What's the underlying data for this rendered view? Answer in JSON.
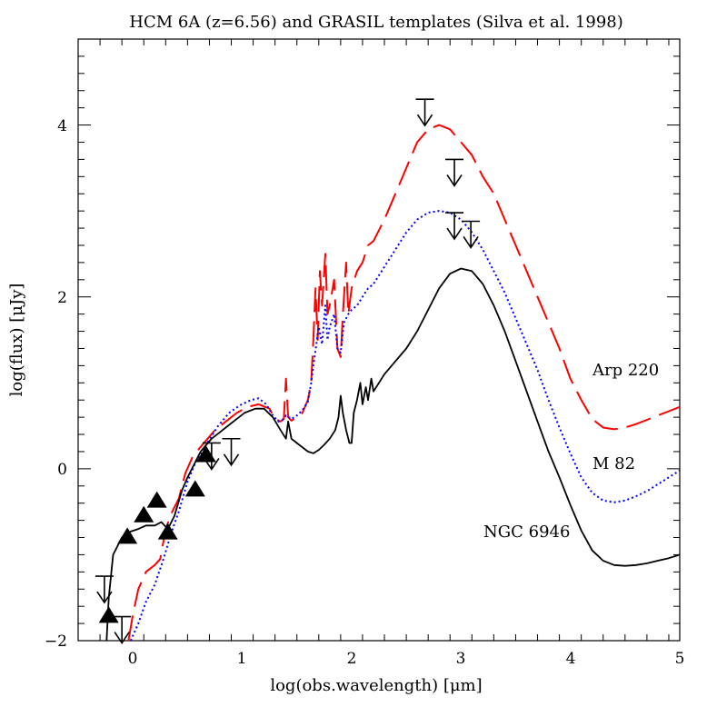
{
  "chart_data": {
    "type": "line",
    "title": "HCM 6A (z=6.56) and GRASIL templates (Silva et al. 1998)",
    "xlabel": "log(obs.wavelength) [μm]",
    "ylabel": "log(flux) [μJy]",
    "xlim": [
      -0.5,
      5
    ],
    "ylim": [
      -2,
      5
    ],
    "x_major_ticks": [
      0,
      1,
      2,
      3,
      4,
      5
    ],
    "x_tick_labels": [
      "0",
      "1",
      "2",
      "3",
      "4",
      "5"
    ],
    "y_major_ticks": [
      -2,
      0,
      2,
      4
    ],
    "y_tick_labels": [
      "−2",
      "0",
      "2",
      "4"
    ],
    "grid": false,
    "series": [
      {
        "name": "Arp 220",
        "color": "#ff0000",
        "dash": "long-dash",
        "points": [
          [
            -0.04,
            -2.0
          ],
          [
            0.0,
            -1.7
          ],
          [
            0.05,
            -1.4
          ],
          [
            0.12,
            -1.2
          ],
          [
            0.2,
            -1.12
          ],
          [
            0.25,
            -1.05
          ],
          [
            0.3,
            -0.7
          ],
          [
            0.36,
            -0.5
          ],
          [
            0.42,
            -0.35
          ],
          [
            0.48,
            -0.05
          ],
          [
            0.55,
            0.15
          ],
          [
            0.65,
            0.3
          ],
          [
            0.75,
            0.45
          ],
          [
            0.85,
            0.55
          ],
          [
            0.95,
            0.65
          ],
          [
            1.05,
            0.72
          ],
          [
            1.15,
            0.75
          ],
          [
            1.25,
            0.7
          ],
          [
            1.3,
            0.58
          ],
          [
            1.35,
            0.55
          ],
          [
            1.38,
            0.58
          ],
          [
            1.4,
            1.05
          ],
          [
            1.42,
            0.6
          ],
          [
            1.45,
            0.56
          ],
          [
            1.5,
            0.6
          ],
          [
            1.55,
            0.65
          ],
          [
            1.6,
            0.8
          ],
          [
            1.63,
            1.0
          ],
          [
            1.65,
            1.5
          ],
          [
            1.67,
            2.1
          ],
          [
            1.69,
            1.5
          ],
          [
            1.71,
            2.3
          ],
          [
            1.73,
            1.9
          ],
          [
            1.76,
            2.5
          ],
          [
            1.78,
            1.8
          ],
          [
            1.8,
            1.9
          ],
          [
            1.84,
            2.2
          ],
          [
            1.87,
            1.4
          ],
          [
            1.9,
            1.3
          ],
          [
            1.92,
            1.8
          ],
          [
            1.95,
            2.4
          ],
          [
            1.97,
            1.8
          ],
          [
            2.0,
            2.1
          ],
          [
            2.05,
            2.3
          ],
          [
            2.1,
            2.4
          ],
          [
            2.15,
            2.6
          ],
          [
            2.2,
            2.65
          ],
          [
            2.3,
            2.9
          ],
          [
            2.4,
            3.2
          ],
          [
            2.5,
            3.5
          ],
          [
            2.6,
            3.8
          ],
          [
            2.7,
            3.95
          ],
          [
            2.8,
            4.0
          ],
          [
            2.9,
            3.95
          ],
          [
            3.0,
            3.8
          ],
          [
            3.1,
            3.65
          ],
          [
            3.2,
            3.4
          ],
          [
            3.3,
            3.2
          ],
          [
            3.4,
            2.9
          ],
          [
            3.5,
            2.6
          ],
          [
            3.6,
            2.3
          ],
          [
            3.7,
            2.0
          ],
          [
            3.8,
            1.7
          ],
          [
            3.9,
            1.4
          ],
          [
            4.0,
            1.05
          ],
          [
            4.1,
            0.8
          ],
          [
            4.2,
            0.58
          ],
          [
            4.3,
            0.48
          ],
          [
            4.4,
            0.46
          ],
          [
            4.5,
            0.48
          ],
          [
            4.6,
            0.52
          ],
          [
            4.7,
            0.57
          ],
          [
            4.8,
            0.62
          ],
          [
            4.9,
            0.67
          ],
          [
            5.0,
            0.72
          ]
        ]
      },
      {
        "name": "M 82",
        "color": "#0000ff",
        "dash": "dotted",
        "points": [
          [
            -0.02,
            -2.0
          ],
          [
            0.05,
            -1.8
          ],
          [
            0.12,
            -1.55
          ],
          [
            0.2,
            -1.35
          ],
          [
            0.28,
            -1.05
          ],
          [
            0.35,
            -0.75
          ],
          [
            0.42,
            -0.5
          ],
          [
            0.5,
            -0.15
          ],
          [
            0.58,
            0.1
          ],
          [
            0.68,
            0.3
          ],
          [
            0.78,
            0.5
          ],
          [
            0.88,
            0.65
          ],
          [
            0.98,
            0.74
          ],
          [
            1.08,
            0.8
          ],
          [
            1.15,
            0.82
          ],
          [
            1.22,
            0.75
          ],
          [
            1.28,
            0.62
          ],
          [
            1.33,
            0.55
          ],
          [
            1.38,
            0.58
          ],
          [
            1.4,
            0.62
          ],
          [
            1.45,
            0.58
          ],
          [
            1.5,
            0.62
          ],
          [
            1.55,
            0.68
          ],
          [
            1.6,
            0.78
          ],
          [
            1.63,
            1.0
          ],
          [
            1.65,
            1.2
          ],
          [
            1.7,
            1.65
          ],
          [
            1.73,
            1.45
          ],
          [
            1.76,
            1.9
          ],
          [
            1.78,
            1.5
          ],
          [
            1.8,
            1.65
          ],
          [
            1.84,
            1.8
          ],
          [
            1.87,
            1.4
          ],
          [
            1.9,
            1.35
          ],
          [
            1.93,
            1.7
          ],
          [
            1.97,
            1.8
          ],
          [
            2.0,
            1.85
          ],
          [
            2.05,
            1.9
          ],
          [
            2.1,
            2.0
          ],
          [
            2.15,
            2.1
          ],
          [
            2.2,
            2.15
          ],
          [
            2.3,
            2.35
          ],
          [
            2.4,
            2.55
          ],
          [
            2.5,
            2.75
          ],
          [
            2.6,
            2.9
          ],
          [
            2.7,
            2.98
          ],
          [
            2.8,
            3.0
          ],
          [
            2.9,
            2.98
          ],
          [
            3.0,
            2.9
          ],
          [
            3.1,
            2.75
          ],
          [
            3.2,
            2.55
          ],
          [
            3.3,
            2.3
          ],
          [
            3.4,
            2.05
          ],
          [
            3.5,
            1.75
          ],
          [
            3.6,
            1.45
          ],
          [
            3.7,
            1.15
          ],
          [
            3.8,
            0.8
          ],
          [
            3.9,
            0.48
          ],
          [
            4.0,
            0.18
          ],
          [
            4.1,
            -0.1
          ],
          [
            4.2,
            -0.28
          ],
          [
            4.3,
            -0.37
          ],
          [
            4.4,
            -0.39
          ],
          [
            4.5,
            -0.37
          ],
          [
            4.6,
            -0.32
          ],
          [
            4.7,
            -0.26
          ],
          [
            4.8,
            -0.18
          ],
          [
            4.9,
            -0.1
          ],
          [
            5.0,
            -0.02
          ]
        ]
      },
      {
        "name": "NGC 6946",
        "color": "#000000",
        "dash": "solid",
        "points": [
          [
            -0.24,
            -2.0
          ],
          [
            -0.22,
            -1.5
          ],
          [
            -0.18,
            -1.0
          ],
          [
            -0.1,
            -0.8
          ],
          [
            -0.02,
            -0.73
          ],
          [
            0.05,
            -0.7
          ],
          [
            0.12,
            -0.66
          ],
          [
            0.2,
            -0.66
          ],
          [
            0.26,
            -0.62
          ],
          [
            0.32,
            -0.7
          ],
          [
            0.38,
            -0.55
          ],
          [
            0.45,
            -0.25
          ],
          [
            0.5,
            -0.1
          ],
          [
            0.56,
            0.05
          ],
          [
            0.62,
            0.2
          ],
          [
            0.72,
            0.35
          ],
          [
            0.82,
            0.45
          ],
          [
            0.92,
            0.55
          ],
          [
            1.02,
            0.65
          ],
          [
            1.12,
            0.7
          ],
          [
            1.2,
            0.7
          ],
          [
            1.28,
            0.6
          ],
          [
            1.35,
            0.45
          ],
          [
            1.4,
            0.35
          ],
          [
            1.42,
            0.55
          ],
          [
            1.45,
            0.35
          ],
          [
            1.5,
            0.3
          ],
          [
            1.55,
            0.25
          ],
          [
            1.6,
            0.2
          ],
          [
            1.65,
            0.18
          ],
          [
            1.7,
            0.22
          ],
          [
            1.75,
            0.28
          ],
          [
            1.8,
            0.35
          ],
          [
            1.85,
            0.45
          ],
          [
            1.88,
            0.6
          ],
          [
            1.9,
            0.85
          ],
          [
            1.92,
            0.65
          ],
          [
            1.95,
            0.45
          ],
          [
            1.98,
            0.3
          ],
          [
            2.0,
            0.3
          ],
          [
            2.02,
            0.65
          ],
          [
            2.05,
            0.8
          ],
          [
            2.08,
            1.0
          ],
          [
            2.1,
            0.75
          ],
          [
            2.13,
            0.95
          ],
          [
            2.15,
            0.8
          ],
          [
            2.18,
            1.05
          ],
          [
            2.2,
            0.9
          ],
          [
            2.25,
            1.0
          ],
          [
            2.3,
            1.1
          ],
          [
            2.4,
            1.25
          ],
          [
            2.5,
            1.4
          ],
          [
            2.6,
            1.6
          ],
          [
            2.7,
            1.85
          ],
          [
            2.8,
            2.1
          ],
          [
            2.9,
            2.27
          ],
          [
            3.0,
            2.33
          ],
          [
            3.1,
            2.3
          ],
          [
            3.2,
            2.15
          ],
          [
            3.3,
            1.9
          ],
          [
            3.4,
            1.6
          ],
          [
            3.5,
            1.25
          ],
          [
            3.6,
            0.9
          ],
          [
            3.7,
            0.55
          ],
          [
            3.8,
            0.2
          ],
          [
            3.9,
            -0.1
          ],
          [
            4.0,
            -0.42
          ],
          [
            4.1,
            -0.72
          ],
          [
            4.2,
            -0.95
          ],
          [
            4.3,
            -1.07
          ],
          [
            4.4,
            -1.12
          ],
          [
            4.5,
            -1.13
          ],
          [
            4.6,
            -1.12
          ],
          [
            4.7,
            -1.1
          ],
          [
            4.8,
            -1.07
          ],
          [
            4.9,
            -1.04
          ],
          [
            5.0,
            -1.0
          ]
        ]
      }
    ],
    "detections": [
      [
        -0.22,
        -1.72
      ],
      [
        -0.05,
        -0.8
      ],
      [
        0.1,
        -0.55
      ],
      [
        0.22,
        -0.38
      ],
      [
        0.32,
        -0.75
      ],
      [
        0.57,
        -0.25
      ],
      [
        0.67,
        0.15
      ]
    ],
    "upper_limits": [
      [
        -0.26,
        -1.25
      ],
      [
        -0.1,
        -1.72
      ],
      [
        0.72,
        0.3
      ],
      [
        0.9,
        0.35
      ],
      [
        2.67,
        4.3
      ],
      [
        2.94,
        3.6
      ],
      [
        2.94,
        2.98
      ],
      [
        3.09,
        2.88
      ]
    ],
    "annotations": [
      "Arp 220",
      "M 82",
      "NGC 6946"
    ]
  }
}
